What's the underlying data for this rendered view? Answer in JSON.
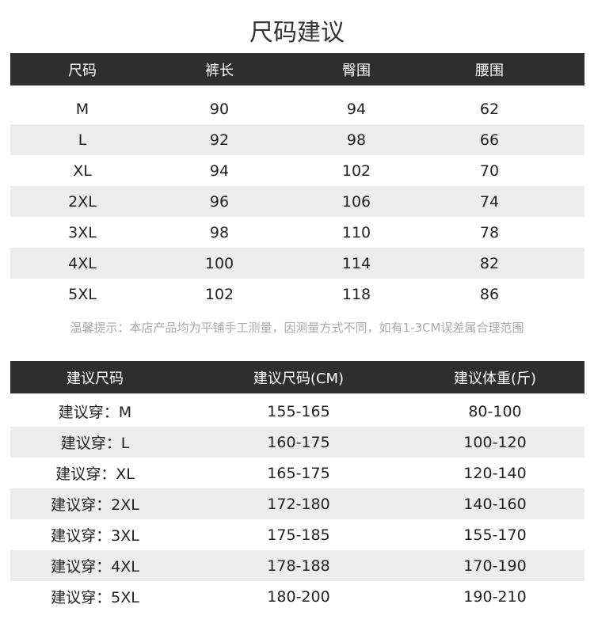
{
  "title": "尺码建议",
  "table1": {
    "headers": [
      "尺码",
      "裤长",
      "臀围",
      "腰围"
    ],
    "rows": [
      [
        "M",
        "90",
        "94",
        "62"
      ],
      [
        "L",
        "92",
        "98",
        "66"
      ],
      [
        "XL",
        "94",
        "102",
        "70"
      ],
      [
        "2XL",
        "96",
        "106",
        "74"
      ],
      [
        "3XL",
        "98",
        "110",
        "78"
      ],
      [
        "4XL",
        "100",
        "114",
        "82"
      ],
      [
        "5XL",
        "102",
        "118",
        "86"
      ]
    ]
  },
  "note": "温馨提示：本店产品均为平铺手工测量，因测量方式不同，如有1-3CM误差属合理范围",
  "table2": {
    "headers": [
      "建议尺码",
      "建议尺码(CM)",
      "建议体重(斤)"
    ],
    "rows": [
      [
        "建议穿：M",
        "155-165",
        "80-100"
      ],
      [
        "建议穿：L",
        "160-175",
        "100-120"
      ],
      [
        "建议穿：XL",
        "165-175",
        "120-140"
      ],
      [
        "建议穿：2XL",
        "172-180",
        "140-160"
      ],
      [
        "建议穿：3XL",
        "175-185",
        "155-170"
      ],
      [
        "建议穿：4XL",
        "178-188",
        "170-190"
      ],
      [
        "建议穿：5XL",
        "180-200",
        "190-210"
      ]
    ]
  }
}
